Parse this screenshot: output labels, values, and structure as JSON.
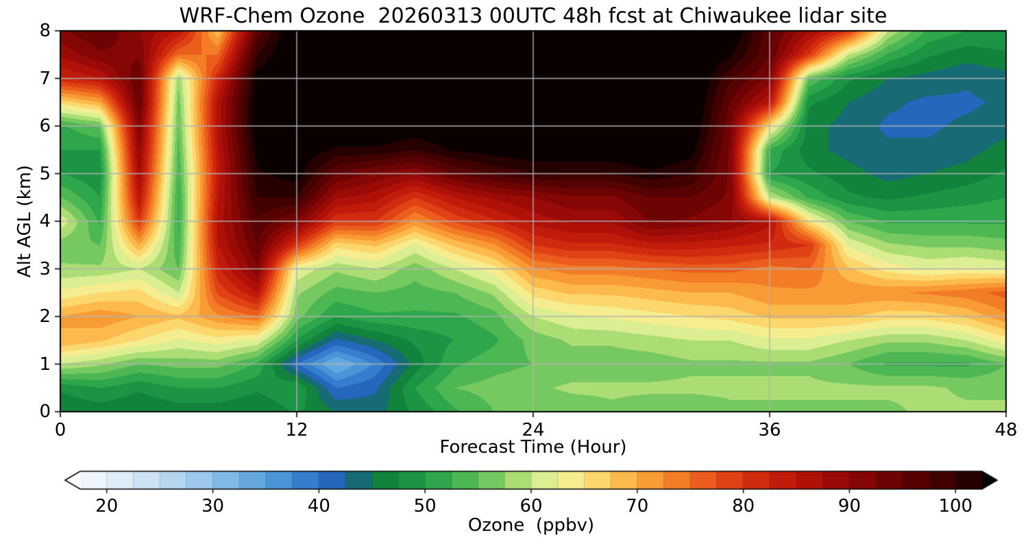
{
  "colors": {
    "background": "#ffffff",
    "grid": "#b0b0b0",
    "frame": "#000000",
    "text": "#000000"
  },
  "chart_data": {
    "type": "heatmap",
    "title": "WRF-Chem Ozone  20260313 00UTC 48h fcst at Chiwaukee lidar site",
    "xlabel": "Forecast Time (Hour)",
    "ylabel": "Alt AGL (km)",
    "colorbar_label": "Ozone  (ppbv)",
    "xlim": [
      0,
      48
    ],
    "ylim": [
      0,
      8
    ],
    "xticks": [
      0,
      12,
      24,
      36,
      48
    ],
    "yticks": [
      0,
      1,
      2,
      3,
      4,
      5,
      6,
      7,
      8
    ],
    "colorbar_ticks": [
      20,
      30,
      40,
      50,
      60,
      70,
      80,
      90,
      100
    ],
    "grid": true,
    "legend_position": "bottom-colorbar",
    "contour_interval": 2.5,
    "value_range": [
      17.5,
      102.5
    ],
    "extend": "both",
    "x_hours": [
      0,
      2,
      4,
      6,
      8,
      10,
      12,
      14,
      16,
      18,
      20,
      22,
      24,
      26,
      28,
      30,
      32,
      34,
      36,
      38,
      40,
      42,
      44,
      46,
      48
    ],
    "y_km": [
      0,
      0.5,
      1,
      1.5,
      2,
      2.5,
      3,
      3.5,
      4,
      4.5,
      5,
      5.5,
      6,
      6.5,
      7,
      7.5,
      8
    ],
    "values_ppbv": [
      [
        45,
        46,
        45,
        46,
        46,
        45,
        48,
        45,
        44,
        48,
        52,
        55,
        56,
        56,
        57,
        56,
        56,
        57,
        57,
        57,
        57,
        57,
        58,
        58,
        58
      ],
      [
        48,
        50,
        48,
        50,
        50,
        48,
        50,
        40,
        42,
        50,
        55,
        56,
        57,
        58,
        58,
        58,
        58,
        58,
        58,
        58,
        58,
        58,
        58,
        57,
        57
      ],
      [
        60,
        58,
        55,
        56,
        56,
        52,
        40,
        32,
        38,
        46,
        52,
        54,
        55,
        56,
        56,
        56,
        57,
        57,
        57,
        57,
        55,
        52,
        52,
        52,
        55
      ],
      [
        70,
        68,
        65,
        62,
        64,
        62,
        50,
        42,
        45,
        48,
        50,
        52,
        56,
        58,
        58,
        59,
        60,
        60,
        62,
        62,
        60,
        58,
        58,
        60,
        64
      ],
      [
        70,
        72,
        70,
        68,
        72,
        75,
        56,
        50,
        52,
        52,
        52,
        54,
        60,
        62,
        63,
        64,
        65,
        66,
        68,
        68,
        68,
        66,
        66,
        68,
        72
      ],
      [
        63,
        65,
        66,
        60,
        78,
        85,
        58,
        54,
        55,
        54,
        55,
        58,
        66,
        68,
        68,
        69,
        70,
        70,
        72,
        72,
        72,
        72,
        73,
        74,
        76
      ],
      [
        58,
        58,
        60,
        55,
        82,
        92,
        62,
        58,
        60,
        56,
        60,
        64,
        72,
        74,
        74,
        75,
        76,
        76,
        74,
        75,
        68,
        64,
        62,
        63,
        62
      ],
      [
        56,
        55,
        70,
        53,
        85,
        95,
        80,
        66,
        68,
        62,
        68,
        72,
        80,
        82,
        82,
        84,
        84,
        83,
        82,
        80,
        62,
        58,
        57,
        57,
        56
      ],
      [
        62,
        52,
        80,
        52,
        86,
        97,
        92,
        80,
        80,
        72,
        78,
        82,
        86,
        88,
        88,
        93,
        92,
        90,
        86,
        65,
        55,
        52,
        52,
        52,
        52
      ],
      [
        55,
        50,
        85,
        52,
        85,
        100,
        100,
        88,
        86,
        80,
        85,
        88,
        90,
        92,
        92,
        95,
        95,
        92,
        60,
        52,
        48,
        47,
        48,
        49,
        50
      ],
      [
        50,
        48,
        88,
        53,
        84,
        102,
        104,
        95,
        92,
        90,
        95,
        98,
        100,
        100,
        100,
        102,
        100,
        92,
        50,
        48,
        46,
        44,
        45,
        46,
        48
      ],
      [
        50,
        50,
        90,
        54,
        85,
        104,
        105,
        102,
        102,
        100,
        103,
        104,
        105,
        105,
        105,
        106,
        104,
        92,
        52,
        46,
        44,
        43,
        43,
        44,
        46
      ],
      [
        52,
        55,
        92,
        55,
        86,
        105,
        106,
        106,
        106,
        105,
        106,
        107,
        107,
        107,
        107,
        107,
        106,
        93,
        65,
        46,
        44,
        42,
        42,
        43,
        44
      ],
      [
        66,
        70,
        95,
        56,
        86,
        105,
        107,
        107,
        107,
        107,
        107,
        107,
        107,
        107,
        107,
        107,
        107,
        95,
        85,
        48,
        45,
        43,
        42,
        42,
        43
      ],
      [
        82,
        85,
        95,
        58,
        82,
        104,
        107,
        107,
        107,
        107,
        107,
        107,
        107,
        107,
        107,
        107,
        107,
        98,
        92,
        55,
        48,
        45,
        44,
        43,
        44
      ],
      [
        88,
        92,
        92,
        75,
        75,
        100,
        107,
        107,
        107,
        107,
        107,
        107,
        107,
        107,
        107,
        107,
        107,
        103,
        95,
        80,
        60,
        52,
        48,
        46,
        47
      ],
      [
        92,
        95,
        90,
        85,
        68,
        96,
        107,
        107,
        107,
        107,
        107,
        107,
        107,
        107,
        107,
        107,
        107,
        106,
        96,
        88,
        80,
        60,
        52,
        50,
        50
      ]
    ],
    "colormap": [
      [
        15,
        "#ffffff"
      ],
      [
        20,
        "#e8f2fa"
      ],
      [
        25,
        "#c2ddf2"
      ],
      [
        30,
        "#8fc1e8"
      ],
      [
        35,
        "#55a0dd"
      ],
      [
        40,
        "#2a72c8"
      ],
      [
        42.5,
        "#1d5cb2"
      ],
      [
        45,
        "#0e7a38"
      ],
      [
        50,
        "#1f9e46"
      ],
      [
        55,
        "#5cbf58"
      ],
      [
        57.5,
        "#8fd168"
      ],
      [
        60,
        "#c8e882"
      ],
      [
        62.5,
        "#eef5a2"
      ],
      [
        65,
        "#fbe57e"
      ],
      [
        67.5,
        "#fcc95b"
      ],
      [
        70,
        "#fbaa3e"
      ],
      [
        72.5,
        "#f68b2c"
      ],
      [
        75,
        "#ef6c20"
      ],
      [
        77.5,
        "#e54e18"
      ],
      [
        80,
        "#d93511"
      ],
      [
        82.5,
        "#c9200c"
      ],
      [
        85,
        "#b8150a"
      ],
      [
        87.5,
        "#a50d08"
      ],
      [
        90,
        "#8f0806"
      ],
      [
        92.5,
        "#780404"
      ],
      [
        95,
        "#620202"
      ],
      [
        97.5,
        "#4c0101"
      ],
      [
        100,
        "#380000"
      ],
      [
        102.5,
        "#140000"
      ],
      [
        105,
        "#000000"
      ]
    ]
  }
}
